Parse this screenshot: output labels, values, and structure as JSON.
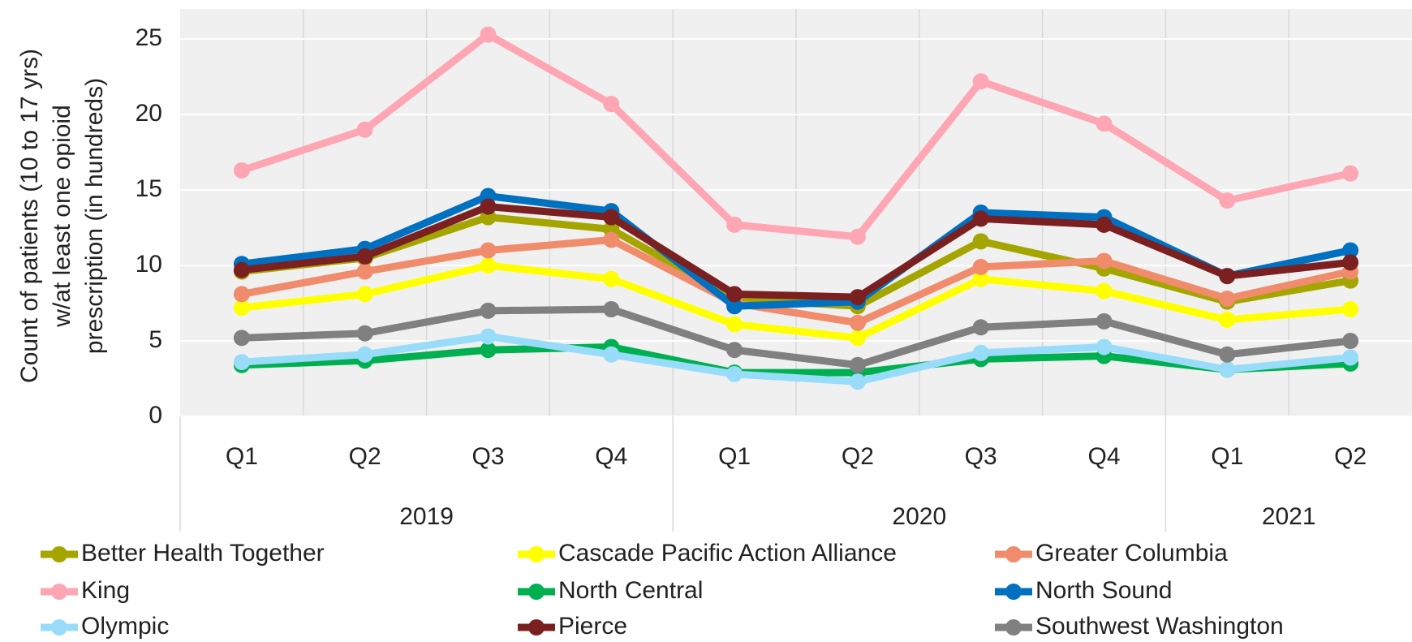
{
  "chart_data": {
    "type": "line",
    "ylabel_lines": [
      "Count of patients (10 to 17 yrs)",
      "w/at least one opioid",
      "prescription (in hundreds)"
    ],
    "categories": [
      [
        "2019",
        "Q1"
      ],
      [
        "2019",
        "Q2"
      ],
      [
        "2019",
        "Q3"
      ],
      [
        "2019",
        "Q4"
      ],
      [
        "2020",
        "Q1"
      ],
      [
        "2020",
        "Q2"
      ],
      [
        "2020",
        "Q3"
      ],
      [
        "2020",
        "Q4"
      ],
      [
        "2021",
        "Q1"
      ],
      [
        "2021",
        "Q2"
      ]
    ],
    "ylim": [
      0,
      27
    ],
    "yticks": [
      0,
      5,
      10,
      15,
      20,
      25
    ],
    "grid": true,
    "legend": "bottom",
    "series": [
      {
        "name": "Better Health Together",
        "color": "#a5a500",
        "values": [
          9.6,
          10.5,
          13.2,
          12.4,
          7.8,
          7.3,
          11.6,
          9.8,
          7.6,
          9.0
        ]
      },
      {
        "name": "Cascade Pacific Action Alliance",
        "color": "#ffff00",
        "values": [
          7.2,
          8.1,
          10.0,
          9.1,
          6.1,
          5.2,
          9.1,
          8.3,
          6.4,
          7.1
        ]
      },
      {
        "name": "Greater Columbia",
        "color": "#f08c6c",
        "values": [
          8.1,
          9.6,
          11.0,
          11.7,
          7.5,
          6.2,
          9.9,
          10.3,
          7.8,
          9.6
        ]
      },
      {
        "name": "King",
        "color": "#ffa6b4",
        "values": [
          16.3,
          19.0,
          25.3,
          20.7,
          12.7,
          11.9,
          22.2,
          19.4,
          14.3,
          16.1
        ]
      },
      {
        "name": "North Central",
        "color": "#00b050",
        "values": [
          3.4,
          3.7,
          4.4,
          4.6,
          2.9,
          2.9,
          3.8,
          4.0,
          3.1,
          3.5
        ]
      },
      {
        "name": "North Sound",
        "color": "#0070c0",
        "values": [
          10.1,
          11.1,
          14.6,
          13.6,
          7.3,
          7.6,
          13.5,
          13.2,
          9.3,
          11.0
        ]
      },
      {
        "name": "Olympic",
        "color": "#99dcfa",
        "values": [
          3.6,
          4.1,
          5.3,
          4.1,
          2.8,
          2.3,
          4.2,
          4.6,
          3.1,
          3.9
        ]
      },
      {
        "name": "Pierce",
        "color": "#7b2020",
        "values": [
          9.7,
          10.6,
          13.9,
          13.2,
          8.1,
          7.9,
          13.1,
          12.7,
          9.3,
          10.2
        ]
      },
      {
        "name": "Southwest Washington",
        "color": "#808080",
        "values": [
          5.2,
          5.5,
          7.0,
          7.1,
          4.4,
          3.4,
          5.9,
          6.3,
          4.1,
          5.0
        ]
      }
    ]
  }
}
